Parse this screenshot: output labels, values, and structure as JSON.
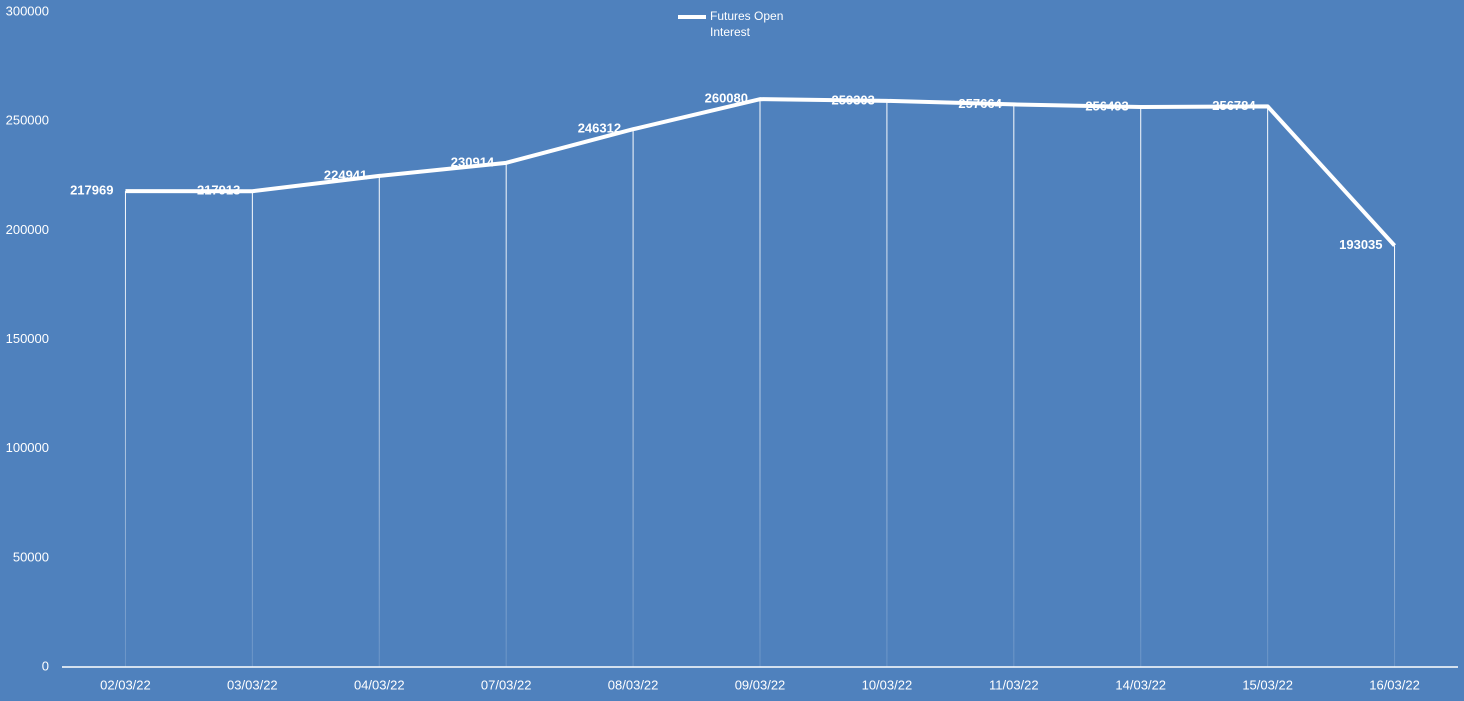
{
  "chart_data": {
    "type": "line",
    "categories": [
      "02/03/22",
      "03/03/22",
      "04/03/22",
      "07/03/22",
      "08/03/22",
      "09/03/22",
      "10/03/22",
      "11/03/22",
      "14/03/22",
      "15/03/22",
      "16/03/22"
    ],
    "series": [
      {
        "name": "Futures Open Interest",
        "color": "#ffffff",
        "values": [
          217969,
          217913,
          224941,
          230914,
          246312,
          260080,
          259303,
          257664,
          256493,
          256784,
          193035
        ]
      }
    ],
    "ylim": [
      0,
      300000
    ],
    "yticks": [
      0,
      50000,
      100000,
      150000,
      200000,
      250000,
      300000
    ],
    "drop_lines": true,
    "data_labels": true,
    "legend": "top"
  }
}
